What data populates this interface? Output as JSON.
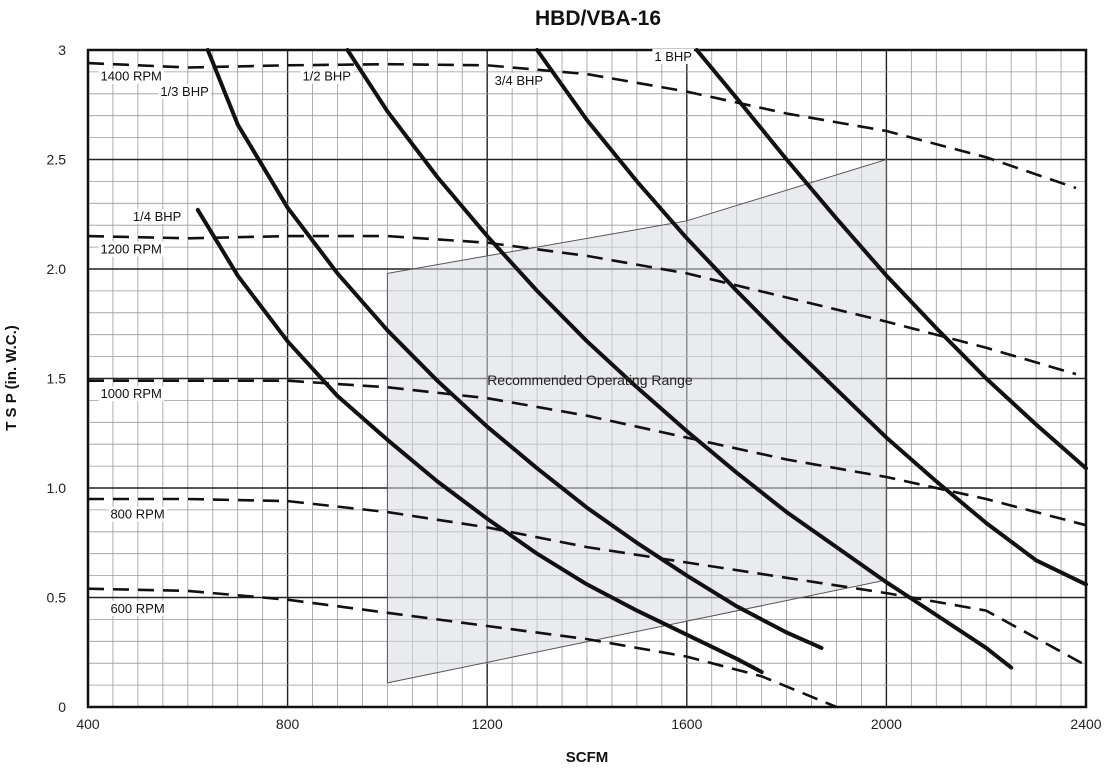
{
  "chart_data": {
    "type": "line",
    "title": "HBD/VBA-16",
    "xlabel": "SCFM",
    "ylabel": "T S P (in. W.C.)",
    "xlim": [
      400,
      2400
    ],
    "ylim": [
      0,
      3
    ],
    "grid": true,
    "x_ticks": [
      400,
      800,
      1200,
      1600,
      2000,
      2400
    ],
    "x_tick_labels": [
      "400",
      "800",
      "1200",
      "1600",
      "2000",
      "2400"
    ],
    "y_ticks": [
      0,
      0.5,
      1,
      1.5,
      2,
      2.5,
      3
    ],
    "y_tick_labels": [
      "0",
      "0.5",
      "1.0",
      "1.5",
      "2.0",
      "2.5",
      "3"
    ],
    "rpm_series": [
      {
        "name": "1400 RPM",
        "label_at": [
          425,
          2.86
        ],
        "points": [
          [
            400,
            2.94
          ],
          [
            600,
            2.92
          ],
          [
            800,
            2.93
          ],
          [
            1000,
            2.935
          ],
          [
            1200,
            2.93
          ],
          [
            1400,
            2.89
          ],
          [
            1600,
            2.81
          ],
          [
            1800,
            2.71
          ],
          [
            2000,
            2.63
          ],
          [
            2200,
            2.51
          ],
          [
            2380,
            2.37
          ]
        ]
      },
      {
        "name": "1200 RPM",
        "label_at": [
          425,
          2.07
        ],
        "points": [
          [
            400,
            2.15
          ],
          [
            600,
            2.14
          ],
          [
            800,
            2.15
          ],
          [
            1000,
            2.15
          ],
          [
            1200,
            2.12
          ],
          [
            1400,
            2.06
          ],
          [
            1600,
            1.98
          ],
          [
            1800,
            1.87
          ],
          [
            2000,
            1.76
          ],
          [
            2200,
            1.64
          ],
          [
            2380,
            1.52
          ]
        ]
      },
      {
        "name": "1000 RPM",
        "label_at": [
          425,
          1.41
        ],
        "points": [
          [
            400,
            1.49
          ],
          [
            600,
            1.49
          ],
          [
            800,
            1.49
          ],
          [
            1000,
            1.46
          ],
          [
            1200,
            1.41
          ],
          [
            1400,
            1.33
          ],
          [
            1600,
            1.23
          ],
          [
            1800,
            1.13
          ],
          [
            2000,
            1.05
          ],
          [
            2200,
            0.95
          ],
          [
            2400,
            0.83
          ]
        ]
      },
      {
        "name": "800 RPM",
        "label_at": [
          445,
          0.86
        ],
        "points": [
          [
            400,
            0.95
          ],
          [
            600,
            0.95
          ],
          [
            800,
            0.94
          ],
          [
            1000,
            0.89
          ],
          [
            1200,
            0.82
          ],
          [
            1400,
            0.73
          ],
          [
            1600,
            0.66
          ],
          [
            1800,
            0.59
          ],
          [
            2000,
            0.52
          ],
          [
            2200,
            0.44
          ],
          [
            2400,
            0.19
          ]
        ]
      },
      {
        "name": "600 RPM",
        "label_at": [
          445,
          0.43
        ],
        "points": [
          [
            400,
            0.54
          ],
          [
            600,
            0.53
          ],
          [
            800,
            0.49
          ],
          [
            1000,
            0.43
          ],
          [
            1200,
            0.37
          ],
          [
            1400,
            0.31
          ],
          [
            1600,
            0.23
          ],
          [
            1750,
            0.14
          ],
          [
            1900,
            0
          ]
        ]
      }
    ],
    "bhp_series": [
      {
        "name": "1/4 BHP",
        "label_at": [
          490,
          2.22
        ],
        "points": [
          [
            620,
            2.27
          ],
          [
            700,
            1.97
          ],
          [
            800,
            1.67
          ],
          [
            900,
            1.42
          ],
          [
            1000,
            1.22
          ],
          [
            1100,
            1.03
          ],
          [
            1200,
            0.86
          ],
          [
            1300,
            0.7
          ],
          [
            1400,
            0.56
          ],
          [
            1500,
            0.44
          ],
          [
            1600,
            0.33
          ],
          [
            1700,
            0.22
          ],
          [
            1750,
            0.16
          ]
        ]
      },
      {
        "name": "1/3 BHP",
        "label_at": [
          545,
          2.79
        ],
        "points": [
          [
            640,
            3.0
          ],
          [
            700,
            2.66
          ],
          [
            800,
            2.28
          ],
          [
            900,
            1.98
          ],
          [
            1000,
            1.72
          ],
          [
            1100,
            1.49
          ],
          [
            1200,
            1.28
          ],
          [
            1300,
            1.09
          ],
          [
            1400,
            0.91
          ],
          [
            1500,
            0.75
          ],
          [
            1600,
            0.6
          ],
          [
            1700,
            0.46
          ],
          [
            1800,
            0.34
          ],
          [
            1870,
            0.27
          ]
        ]
      },
      {
        "name": "1/2 BHP",
        "label_at": [
          830,
          2.86
        ],
        "points": [
          [
            920,
            3.0
          ],
          [
            1000,
            2.72
          ],
          [
            1100,
            2.42
          ],
          [
            1200,
            2.15
          ],
          [
            1300,
            1.9
          ],
          [
            1400,
            1.67
          ],
          [
            1500,
            1.46
          ],
          [
            1600,
            1.26
          ],
          [
            1700,
            1.07
          ],
          [
            1800,
            0.89
          ],
          [
            1900,
            0.73
          ],
          [
            2000,
            0.57
          ],
          [
            2100,
            0.42
          ],
          [
            2200,
            0.27
          ],
          [
            2250,
            0.18
          ]
        ]
      },
      {
        "name": "3/4 BHP",
        "label_at": [
          1215,
          2.84
        ],
        "points": [
          [
            1300,
            3.0
          ],
          [
            1400,
            2.68
          ],
          [
            1500,
            2.4
          ],
          [
            1600,
            2.14
          ],
          [
            1700,
            1.9
          ],
          [
            1800,
            1.67
          ],
          [
            1900,
            1.45
          ],
          [
            2000,
            1.23
          ],
          [
            2100,
            1.03
          ],
          [
            2200,
            0.84
          ],
          [
            2300,
            0.67
          ],
          [
            2400,
            0.56
          ]
        ]
      },
      {
        "name": "1 BHP",
        "label_at": [
          1535,
          2.95
        ],
        "points": [
          [
            1620,
            3.0
          ],
          [
            1700,
            2.78
          ],
          [
            1800,
            2.5
          ],
          [
            1900,
            2.23
          ],
          [
            2000,
            1.97
          ],
          [
            2100,
            1.73
          ],
          [
            2200,
            1.5
          ],
          [
            2300,
            1.29
          ],
          [
            2400,
            1.09
          ]
        ]
      }
    ],
    "operating_range": {
      "label": "Recommended Operating Range",
      "label_at": [
        1200,
        1.47
      ],
      "polygon": [
        [
          1000,
          0.11
        ],
        [
          2000,
          0.58
        ],
        [
          2000,
          2.5
        ],
        [
          1600,
          2.22
        ],
        [
          1000,
          1.98
        ]
      ]
    }
  }
}
